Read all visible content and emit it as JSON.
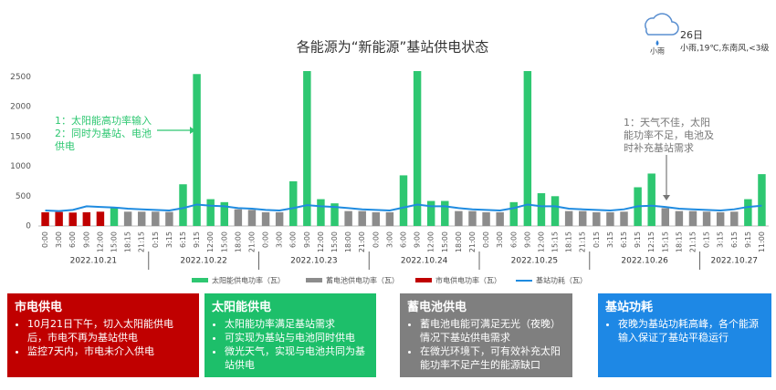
{
  "chart_data": {
    "type": "bar",
    "title": "各能源为“新能源”基站供电状态",
    "categories": [
      "0:00",
      "3:00",
      "6:00",
      "9:00",
      "12:00",
      "15:00",
      "18:15",
      "21:15",
      "0:15",
      "3:15",
      "6:15",
      "9:15",
      "12:00",
      "15:00",
      "18:00",
      "21:00",
      "0:00",
      "3:00",
      "6:00",
      "9:00",
      "12:00",
      "15:00",
      "18:00",
      "21:00",
      "0:00",
      "3:00",
      "6:00",
      "9:00",
      "12:00",
      "15:00",
      "18:00",
      "21:00",
      "0:00",
      "3:00",
      "6:00",
      "9:00",
      "12:00",
      "15:15",
      "18:15",
      "21:15",
      "0:15",
      "3:15",
      "6:15",
      "9:15",
      "12:15",
      "15:15",
      "18:15",
      "21:15",
      "0:15",
      "3:15",
      "6:15",
      "9:15",
      "11:00"
    ],
    "dates": [
      "2022.10.21",
      "2022.10.22",
      "2022.10.23",
      "2022.10.24",
      "2022.10.25",
      "2022.10.26",
      "2022.10.27"
    ],
    "series": [
      {
        "name": "太阳能供电功率（瓦）",
        "color": "#2ec771",
        "type": "bar",
        "values": [
          null,
          null,
          null,
          null,
          null,
          300,
          null,
          null,
          null,
          null,
          700,
          2550,
          450,
          400,
          null,
          null,
          null,
          null,
          750,
          2600,
          450,
          380,
          null,
          null,
          null,
          null,
          850,
          2600,
          420,
          420,
          null,
          null,
          null,
          null,
          400,
          2600,
          550,
          500,
          null,
          null,
          null,
          null,
          null,
          650,
          880,
          null,
          null,
          null,
          null,
          null,
          null,
          450,
          870
        ]
      },
      {
        "name": "蓄电池供电功率（瓦）",
        "color": "#8c8c8c",
        "type": "bar",
        "values": [
          null,
          null,
          null,
          null,
          null,
          null,
          240,
          240,
          240,
          235,
          null,
          null,
          null,
          null,
          280,
          270,
          230,
          230,
          null,
          null,
          null,
          null,
          250,
          250,
          230,
          230,
          null,
          null,
          null,
          null,
          250,
          250,
          230,
          230,
          null,
          null,
          null,
          null,
          250,
          250,
          230,
          230,
          240,
          null,
          null,
          300,
          250,
          250,
          240,
          230,
          240,
          null,
          null
        ]
      },
      {
        "name": "市电供电功率（瓦）",
        "color": "#c00000",
        "type": "bar",
        "values": [
          230,
          235,
          225,
          230,
          240,
          null,
          null,
          null,
          null,
          null,
          null,
          null,
          null,
          null,
          null,
          null,
          null,
          null,
          null,
          null,
          null,
          null,
          null,
          null,
          null,
          null,
          null,
          null,
          null,
          null,
          null,
          null,
          null,
          null,
          null,
          null,
          null,
          null,
          null,
          null,
          null,
          null,
          null,
          null,
          null,
          null,
          null,
          null,
          null,
          null,
          null,
          null,
          null
        ]
      },
      {
        "name": "基站功耗（瓦）",
        "color": "#1f8be0",
        "type": "line",
        "values": [
          260,
          250,
          270,
          330,
          320,
          310,
          290,
          280,
          270,
          260,
          300,
          360,
          340,
          330,
          300,
          290,
          270,
          260,
          300,
          350,
          330,
          320,
          300,
          280,
          270,
          260,
          310,
          360,
          330,
          330,
          300,
          280,
          270,
          260,
          300,
          360,
          330,
          330,
          290,
          280,
          270,
          260,
          280,
          330,
          340,
          320,
          290,
          280,
          270,
          260,
          280,
          320,
          340
        ]
      }
    ],
    "ylim": [
      0,
      2600
    ],
    "yticks": [
      0,
      500,
      1000,
      1500,
      2000,
      2500
    ],
    "grid": false,
    "annotations": [
      {
        "lines": [
          "1：太阳能高功率输入",
          "2：同时为基站、电池",
          "供电"
        ],
        "color": "#2ec771"
      },
      {
        "lines": [
          "1：天气不佳，太阳",
          "能功率不足，电池及",
          "时补充基站需求"
        ],
        "color": "#777777"
      }
    ]
  },
  "weather": {
    "day": "26日",
    "detail": "小雨,19℃,东南风,<3级",
    "icon_label": "小雨"
  },
  "cards": [
    {
      "title": "市电供电",
      "color": "#c00000",
      "items": [
        "10月21日下午，切入太阳能供电后，市电不再为基站供电",
        "监控7天内，市电未介入供电"
      ]
    },
    {
      "title": "太阳能供电",
      "color": "#1dbf6a",
      "items": [
        "太阳能功率满足基站需求",
        "可实现为基站与电池同时供电",
        "微光天气，实现与电池共同为基站供电"
      ]
    },
    {
      "title": "蓄电池供电",
      "color": "#7f7f7f",
      "items": [
        "蓄电池电能可满足无光（夜晚）情况下基站供电需求",
        "在微光环境下，可有效补充太阳能功率不足产生的能源缺口"
      ]
    },
    {
      "title": "基站功耗",
      "color": "#1e88e5",
      "items": [
        "夜晚为基站功耗高峰，各个能源输入保证了基站平稳运行"
      ]
    }
  ]
}
